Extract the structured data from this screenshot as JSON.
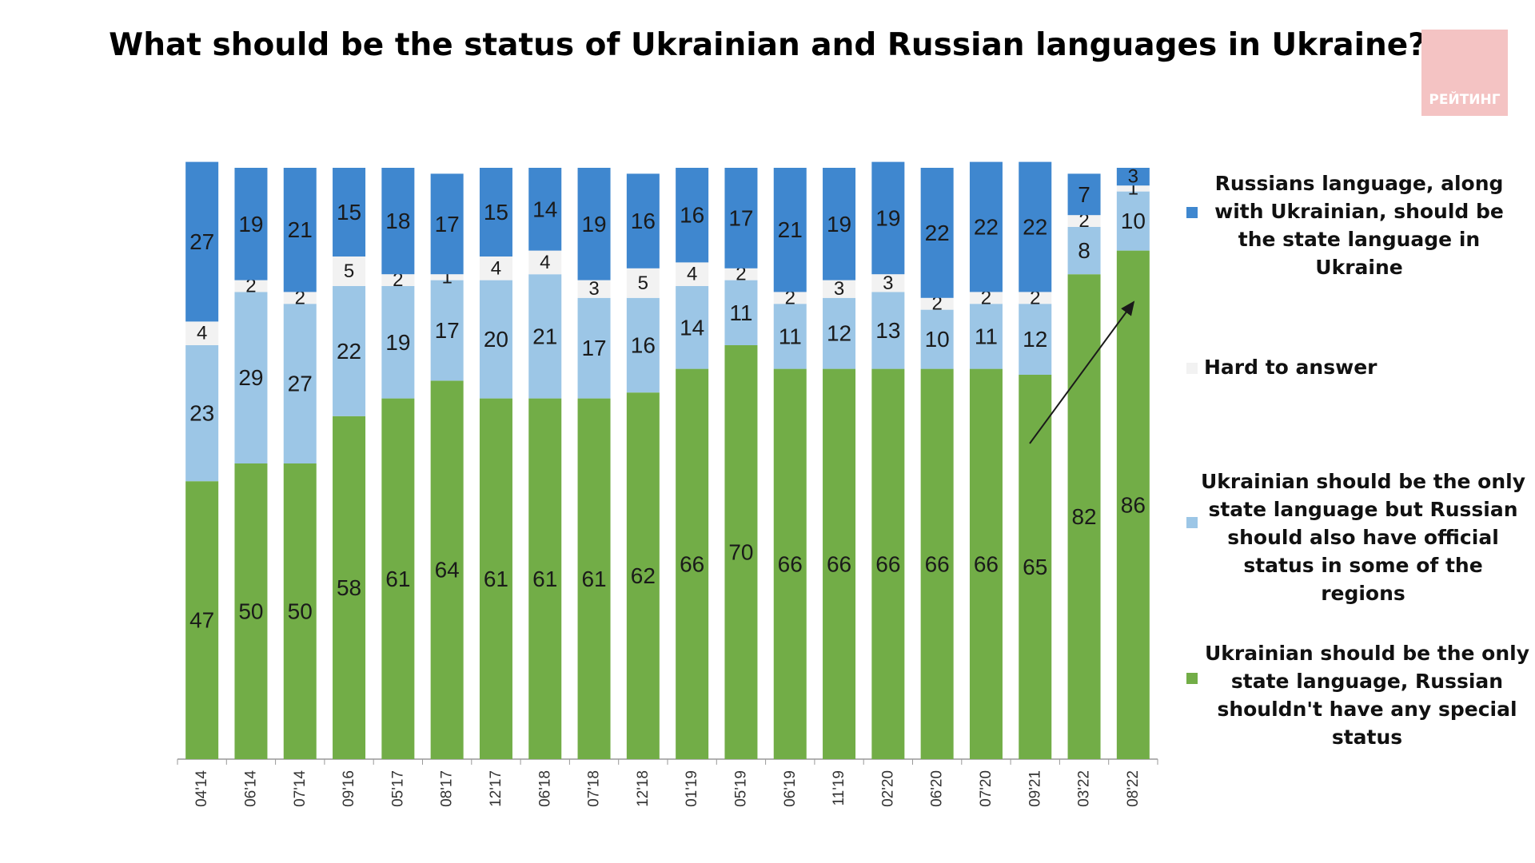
{
  "title": "What should be the status of Ukrainian and Russian languages in Ukraine?",
  "logo_text": "РЕЙТИНГ",
  "legend": [
    {
      "label": "Russians language, along with Ukrainian, should be the state language in Ukraine",
      "color": "#3f87cf"
    },
    {
      "label": "Hard to answer",
      "color": "#f2f2f2"
    },
    {
      "label": "Ukrainian should be the only state language but Russian should also have official status in some of the regions",
      "color": "#9cc6e6"
    },
    {
      "label": "Ukrainian should be the only state language, Russian shouldn't have any special status",
      "color": "#72ad47"
    }
  ],
  "chart_data": {
    "type": "bar",
    "stacked": true,
    "categories": [
      "04'14",
      "06'14",
      "07'14",
      "09'16",
      "05'17",
      "08'17",
      "12'17",
      "06'18",
      "07'18",
      "12'18",
      "01'19",
      "05'19",
      "06'19",
      "11'19",
      "02'20",
      "06'20",
      "07'20",
      "09'21",
      "03'22",
      "08'22"
    ],
    "series": [
      {
        "name": "Ukrainian should be the only state language, Russian shouldn't have any special status",
        "color": "#72ad47",
        "values": [
          47,
          50,
          50,
          58,
          61,
          64,
          61,
          61,
          61,
          62,
          66,
          70,
          66,
          66,
          66,
          66,
          66,
          65,
          82,
          86
        ]
      },
      {
        "name": "Ukrainian should be the only state language but Russian should also have official status in some of the regions",
        "color": "#9cc6e6",
        "values": [
          23,
          29,
          27,
          22,
          19,
          17,
          20,
          21,
          17,
          16,
          14,
          11,
          11,
          12,
          13,
          10,
          11,
          12,
          8,
          10
        ]
      },
      {
        "name": "Hard to answer",
        "color": "#f2f2f2",
        "values": [
          4,
          2,
          2,
          5,
          2,
          1,
          4,
          4,
          3,
          5,
          4,
          2,
          2,
          3,
          3,
          2,
          2,
          2,
          2,
          1
        ]
      },
      {
        "name": "Russians language, along with Ukrainian, should be the state language in Ukraine",
        "color": "#3f87cf",
        "values": [
          27,
          19,
          21,
          15,
          18,
          17,
          15,
          14,
          19,
          16,
          16,
          17,
          21,
          19,
          19,
          22,
          22,
          22,
          7,
          3
        ]
      }
    ],
    "ylim": [
      0,
      100
    ],
    "grid": false,
    "legend_position": "right",
    "annotation": "arrow pointing up toward the 08'22 bar"
  }
}
